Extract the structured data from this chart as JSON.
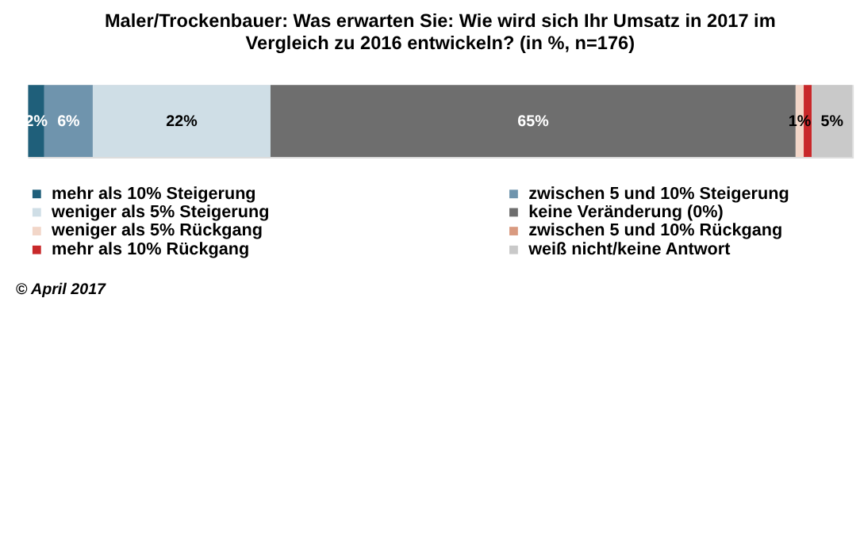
{
  "chart_data": {
    "type": "bar",
    "orientation": "horizontal",
    "stacked": true,
    "title": [
      "Maler/Trockenbauer:  Was erwarten Sie: Wie wird sich Ihr Umsatz  in 2017 im",
      "Vergleich zu 2016 entwickeln? (in %, n=176)"
    ],
    "categories": [
      null
    ],
    "legend": "bottom",
    "annotations": [
      "© April 2017"
    ],
    "series": [
      {
        "name": "mehr als 10% Steigerung",
        "color": "#1f5f7a",
        "values": [
          2
        ],
        "value_labels": [
          "2%"
        ]
      },
      {
        "name": "zwischen 5 und 10% Steigerung",
        "color": "#6f94ad",
        "values": [
          6
        ],
        "value_labels": [
          "6%"
        ]
      },
      {
        "name": "weniger als 5% Steigerung",
        "color": "#cfdee6",
        "values": [
          22
        ],
        "value_labels": [
          "22%"
        ]
      },
      {
        "name": "keine Veränderung (0%)",
        "color": "#6e6e6e",
        "values": [
          65
        ],
        "value_labels": [
          "65%"
        ]
      },
      {
        "name": "weniger als 5% Rückgang",
        "color": "#f2d6c8",
        "values": [
          1
        ],
        "value_labels": [
          "1%"
        ]
      },
      {
        "name": "zwischen 5 und 10% Rückgang",
        "color": "#d99a80",
        "values": [
          0
        ],
        "value_labels": [
          null
        ]
      },
      {
        "name": "mehr als 10% Rückgang",
        "color": "#c8282a",
        "values": [
          1
        ],
        "value_labels": [
          null
        ]
      },
      {
        "name": "weiß nicht/keine Antwort",
        "color": "#c9c9c9",
        "values": [
          5
        ],
        "value_labels": [
          "5%"
        ]
      }
    ]
  }
}
